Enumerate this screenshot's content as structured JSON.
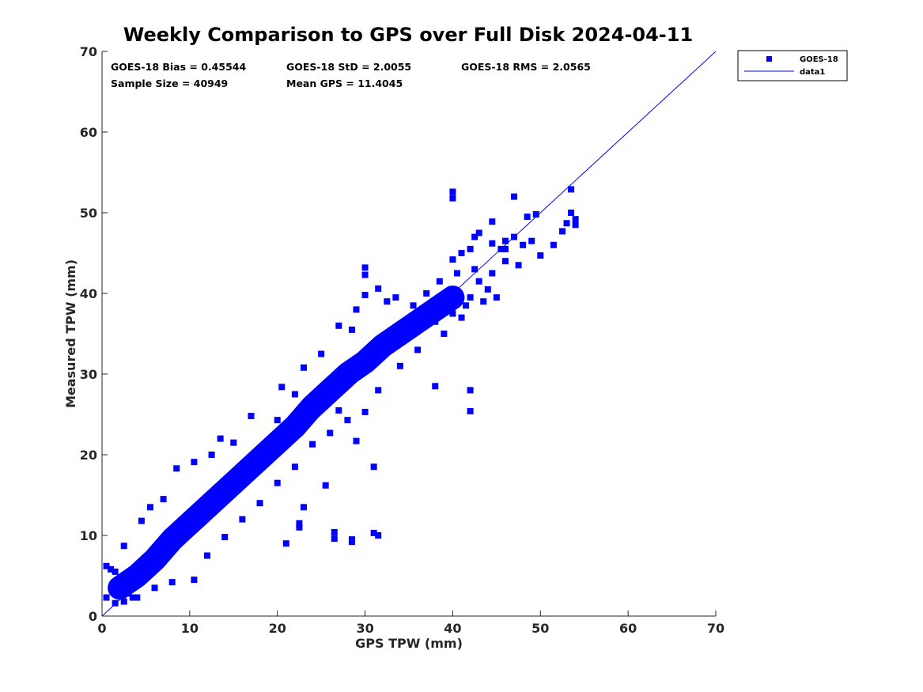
{
  "chart_data": {
    "type": "scatter",
    "title": "Weekly Comparison to GPS over Full Disk 2024-04-11",
    "xlabel": "GPS TPW (mm)",
    "ylabel": "Measured TPW (mm)",
    "xlim": [
      0,
      70
    ],
    "ylim": [
      0,
      70
    ],
    "xticks": [
      "0",
      "10",
      "20",
      "30",
      "40",
      "50",
      "60",
      "70"
    ],
    "yticks": [
      "0",
      "10",
      "20",
      "30",
      "40",
      "50",
      "60",
      "70"
    ],
    "grid": false,
    "legend_position": "outside-top-right",
    "stats": {
      "bias": "GOES-18 Bias = 0.45544",
      "std": "GOES-18 StD = 2.0055",
      "rms": "GOES-18 RMS = 2.0565",
      "sample_size": "Sample Size = 40949",
      "mean_gps": "Mean GPS = 11.4045"
    },
    "series": [
      {
        "name": "GOES-18",
        "marker": "square",
        "color": "#0000ff",
        "cloud": [
          [
            2,
            3.5
          ],
          [
            4,
            5
          ],
          [
            6,
            7
          ],
          [
            8,
            9.5
          ],
          [
            10,
            11.5
          ],
          [
            12,
            13.5
          ],
          [
            14,
            15.5
          ],
          [
            16,
            17.5
          ],
          [
            18,
            19.5
          ],
          [
            20,
            21.5
          ],
          [
            22,
            23.5
          ],
          [
            24,
            26
          ],
          [
            26,
            28
          ],
          [
            28,
            30
          ],
          [
            30,
            31.5
          ],
          [
            32,
            33.5
          ],
          [
            34,
            35
          ],
          [
            36,
            36.5
          ],
          [
            38,
            38
          ],
          [
            40,
            39.5
          ]
        ],
        "points": [
          [
            0.5,
            2.3
          ],
          [
            0.5,
            6.2
          ],
          [
            1,
            5.8
          ],
          [
            1.5,
            1.6
          ],
          [
            1.5,
            5.5
          ],
          [
            2.5,
            8.7
          ],
          [
            3.5,
            2.3
          ],
          [
            4.5,
            11.8
          ],
          [
            5.5,
            13.5
          ],
          [
            7,
            14.5
          ],
          [
            8.5,
            18.3
          ],
          [
            10.5,
            19.1
          ],
          [
            12.5,
            20
          ],
          [
            13.5,
            22
          ],
          [
            15,
            21.5
          ],
          [
            17,
            24.8
          ],
          [
            20,
            24.3
          ],
          [
            20.5,
            28.4
          ],
          [
            22,
            27.5
          ],
          [
            23,
            30.8
          ],
          [
            25,
            32.5
          ],
          [
            27,
            36
          ],
          [
            28.5,
            35.5
          ],
          [
            30,
            43.2
          ],
          [
            30,
            42.3
          ],
          [
            30,
            39.8
          ],
          [
            31.5,
            40.6
          ],
          [
            29,
            38
          ],
          [
            32.5,
            39
          ],
          [
            33.5,
            39.5
          ],
          [
            35.5,
            38.5
          ],
          [
            37,
            40
          ],
          [
            38.5,
            41.5
          ],
          [
            40,
            52.6
          ],
          [
            40,
            51.8
          ],
          [
            40,
            44.2
          ],
          [
            42,
            45.5
          ],
          [
            42.5,
            43
          ],
          [
            43,
            47.5
          ],
          [
            44.5,
            48.9
          ],
          [
            45.5,
            45.5
          ],
          [
            47,
            52
          ],
          [
            47,
            47
          ],
          [
            48.5,
            49.5
          ],
          [
            49.5,
            49.8
          ],
          [
            50,
            44.7
          ],
          [
            51.5,
            46
          ],
          [
            52.5,
            47.7
          ],
          [
            53.5,
            52.9
          ],
          [
            53.5,
            50
          ],
          [
            54,
            48.5
          ],
          [
            54,
            49.2
          ],
          [
            53,
            48.7
          ],
          [
            46,
            46.5
          ],
          [
            44,
            40.5
          ],
          [
            42,
            39.5
          ],
          [
            41,
            37
          ],
          [
            39,
            35
          ],
          [
            36,
            33
          ],
          [
            34,
            31
          ],
          [
            31.5,
            28
          ],
          [
            30,
            25.3
          ],
          [
            28,
            24.3
          ],
          [
            26,
            22.7
          ],
          [
            24,
            21.3
          ],
          [
            22,
            18.5
          ],
          [
            20,
            16.5
          ],
          [
            18,
            14
          ],
          [
            16,
            12
          ],
          [
            14,
            9.8
          ],
          [
            12,
            7.5
          ],
          [
            10.5,
            4.5
          ],
          [
            8,
            4.2
          ],
          [
            6,
            3.5
          ],
          [
            4,
            2.3
          ],
          [
            2.5,
            1.8
          ],
          [
            3,
            2.8
          ],
          [
            27,
            25.5
          ],
          [
            29,
            21.7
          ],
          [
            31,
            18.5
          ],
          [
            26.5,
            10.4
          ],
          [
            26.5,
            9.6
          ],
          [
            28.5,
            9.5
          ],
          [
            28.5,
            9.2
          ],
          [
            31,
            10.3
          ],
          [
            31.5,
            10
          ],
          [
            21,
            9
          ],
          [
            22.5,
            11.5
          ],
          [
            22.5,
            11
          ],
          [
            25.5,
            16.2
          ],
          [
            23,
            13.5
          ],
          [
            38,
            28.5
          ],
          [
            42,
            28
          ],
          [
            42,
            25.4
          ],
          [
            36,
            35.5
          ],
          [
            38,
            36.5
          ],
          [
            40,
            37.5
          ],
          [
            41.5,
            38.5
          ],
          [
            43,
            41.5
          ],
          [
            44.5,
            42.5
          ],
          [
            46,
            44
          ],
          [
            47.5,
            43.5
          ],
          [
            45,
            39.5
          ],
          [
            43.5,
            39
          ],
          [
            46,
            45.5
          ],
          [
            48,
            46
          ],
          [
            49,
            46.5
          ],
          [
            44.5,
            46.2
          ],
          [
            42.5,
            47
          ],
          [
            41,
            45
          ],
          [
            40.5,
            42.5
          ]
        ]
      },
      {
        "name": "data1",
        "type": "line",
        "color": "#0000ff",
        "x": [
          0,
          70
        ],
        "y": [
          0,
          70
        ]
      }
    ]
  }
}
